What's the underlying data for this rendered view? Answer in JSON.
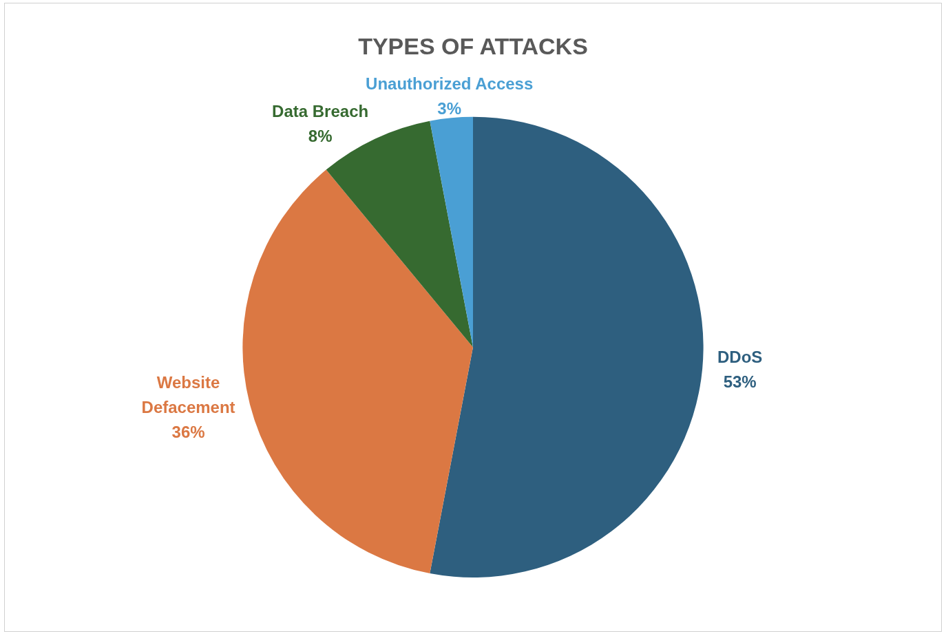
{
  "chart_data": {
    "type": "pie",
    "title": "TYPES OF ATTACKS",
    "categories": [
      "DDoS",
      "Website Defacement",
      "Data Breach",
      "Unauthorized Access"
    ],
    "values": [
      53,
      36,
      8,
      3
    ],
    "value_labels": [
      "53%",
      "36%",
      "8%",
      "3%"
    ],
    "colors": [
      "#2e5f7f",
      "#db7843",
      "#366a30",
      "#4a9fd4"
    ],
    "legend": false
  }
}
